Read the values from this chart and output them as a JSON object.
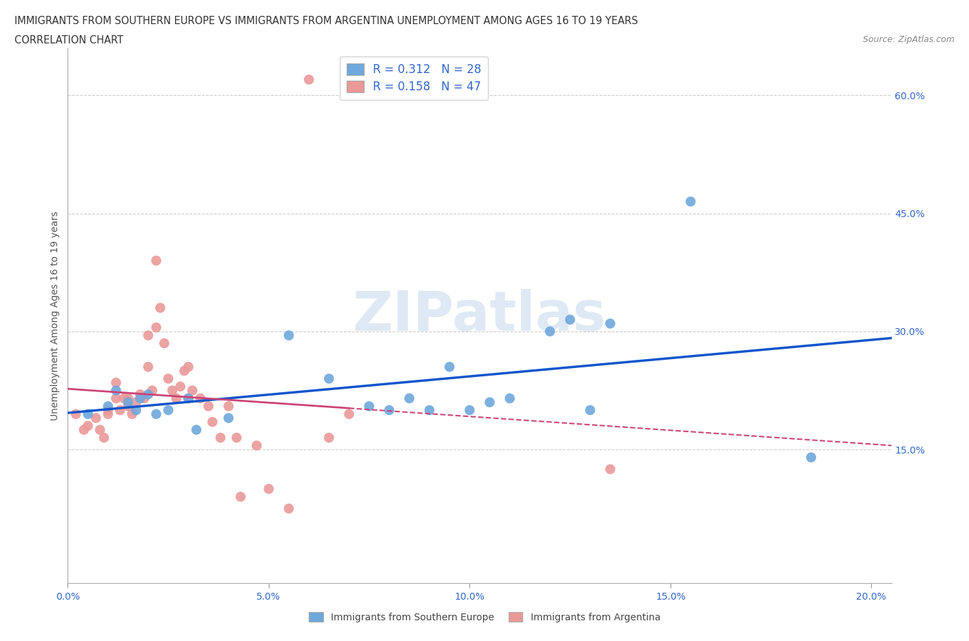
{
  "title_line1": "IMMIGRANTS FROM SOUTHERN EUROPE VS IMMIGRANTS FROM ARGENTINA UNEMPLOYMENT AMONG AGES 16 TO 19 YEARS",
  "title_line2": "CORRELATION CHART",
  "source_text": "Source: ZipAtlas.com",
  "ylabel": "Unemployment Among Ages 16 to 19 years",
  "xlim": [
    0.0,
    0.205
  ],
  "ylim": [
    -0.02,
    0.66
  ],
  "xticks": [
    0.0,
    0.05,
    0.1,
    0.15,
    0.2
  ],
  "yticks": [
    0.15,
    0.3,
    0.45,
    0.6
  ],
  "ytick_labels": [
    "15.0%",
    "30.0%",
    "45.0%",
    "60.0%"
  ],
  "xtick_labels": [
    "0.0%",
    "5.0%",
    "10.0%",
    "15.0%",
    "20.0%"
  ],
  "blue_color": "#6fa8dc",
  "pink_color": "#ea9999",
  "blue_line_color": "#1155cc",
  "pink_line_color": "#cc4477",
  "tick_color": "#3366cc",
  "R_blue": 0.312,
  "N_blue": 28,
  "R_pink": 0.158,
  "N_pink": 47,
  "legend_label_blue": "Immigrants from Southern Europe",
  "legend_label_pink": "Immigrants from Argentina",
  "watermark": "ZIPatlas",
  "blue_x": [
    0.005,
    0.01,
    0.012,
    0.015,
    0.017,
    0.018,
    0.02,
    0.022,
    0.025,
    0.03,
    0.032,
    0.04,
    0.055,
    0.065,
    0.075,
    0.08,
    0.085,
    0.09,
    0.095,
    0.1,
    0.105,
    0.11,
    0.12,
    0.125,
    0.13,
    0.135,
    0.155,
    0.185
  ],
  "blue_y": [
    0.195,
    0.205,
    0.225,
    0.21,
    0.2,
    0.215,
    0.22,
    0.195,
    0.2,
    0.215,
    0.175,
    0.19,
    0.295,
    0.24,
    0.205,
    0.2,
    0.215,
    0.2,
    0.255,
    0.2,
    0.21,
    0.215,
    0.3,
    0.315,
    0.2,
    0.31,
    0.465,
    0.14
  ],
  "pink_x": [
    0.002,
    0.004,
    0.005,
    0.007,
    0.008,
    0.009,
    0.01,
    0.01,
    0.012,
    0.012,
    0.013,
    0.014,
    0.015,
    0.015,
    0.016,
    0.017,
    0.018,
    0.019,
    0.02,
    0.02,
    0.021,
    0.022,
    0.022,
    0.023,
    0.024,
    0.025,
    0.026,
    0.027,
    0.028,
    0.029,
    0.03,
    0.03,
    0.031,
    0.033,
    0.035,
    0.036,
    0.038,
    0.04,
    0.042,
    0.043,
    0.047,
    0.05,
    0.055,
    0.06,
    0.065,
    0.07,
    0.135
  ],
  "pink_y": [
    0.195,
    0.175,
    0.18,
    0.19,
    0.175,
    0.165,
    0.2,
    0.195,
    0.215,
    0.235,
    0.2,
    0.215,
    0.215,
    0.205,
    0.195,
    0.21,
    0.22,
    0.215,
    0.255,
    0.295,
    0.225,
    0.39,
    0.305,
    0.33,
    0.285,
    0.24,
    0.225,
    0.215,
    0.23,
    0.25,
    0.215,
    0.255,
    0.225,
    0.215,
    0.205,
    0.185,
    0.165,
    0.205,
    0.165,
    0.09,
    0.155,
    0.1,
    0.075,
    0.62,
    0.165,
    0.195,
    0.125
  ],
  "grid_color": "#cccccc",
  "spine_color": "#aaaaaa",
  "axis_bg": "white"
}
